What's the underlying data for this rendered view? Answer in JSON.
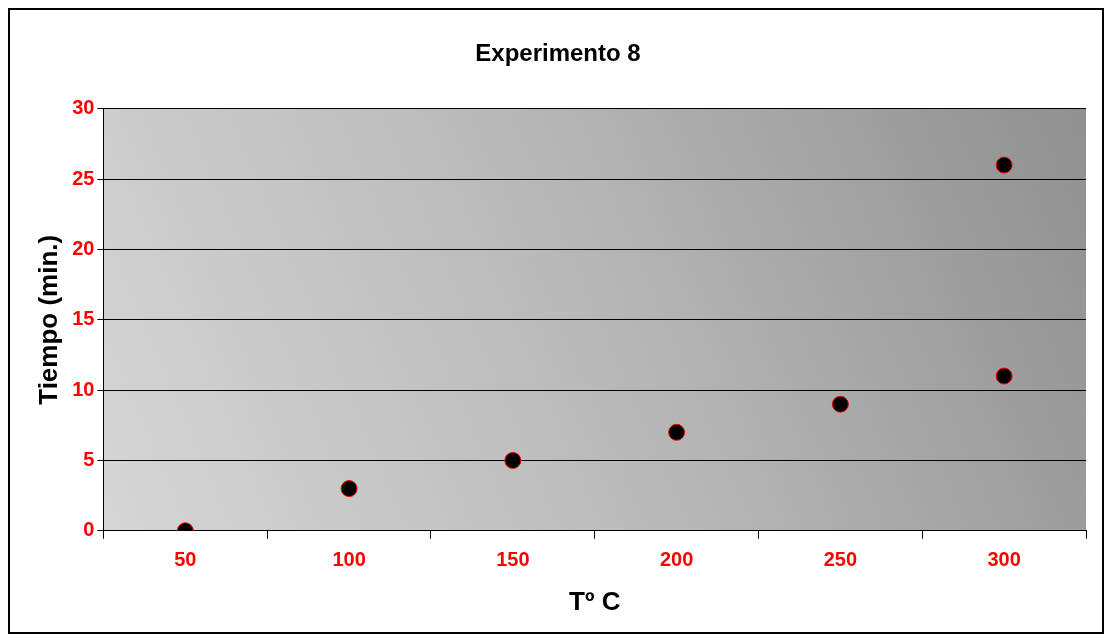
{
  "chart_data": {
    "type": "scatter",
    "title": "Experimento 8",
    "xlabel": "Tº C",
    "ylabel": "Tiempo (min.)",
    "categories": [
      "50",
      "100",
      "150",
      "200",
      "250",
      "300"
    ],
    "series": [
      {
        "color": "#000000",
        "x": [
          "50",
          "100",
          "150",
          "200",
          "250",
          "300",
          "300"
        ],
        "values": [
          0,
          3,
          5,
          7,
          9,
          11,
          26
        ]
      }
    ],
    "ylim": [
      0,
      30
    ],
    "yticks": [
      0,
      5,
      10,
      15,
      20,
      25,
      30
    ],
    "grid": "y",
    "marker": "circle",
    "legend": false
  }
}
